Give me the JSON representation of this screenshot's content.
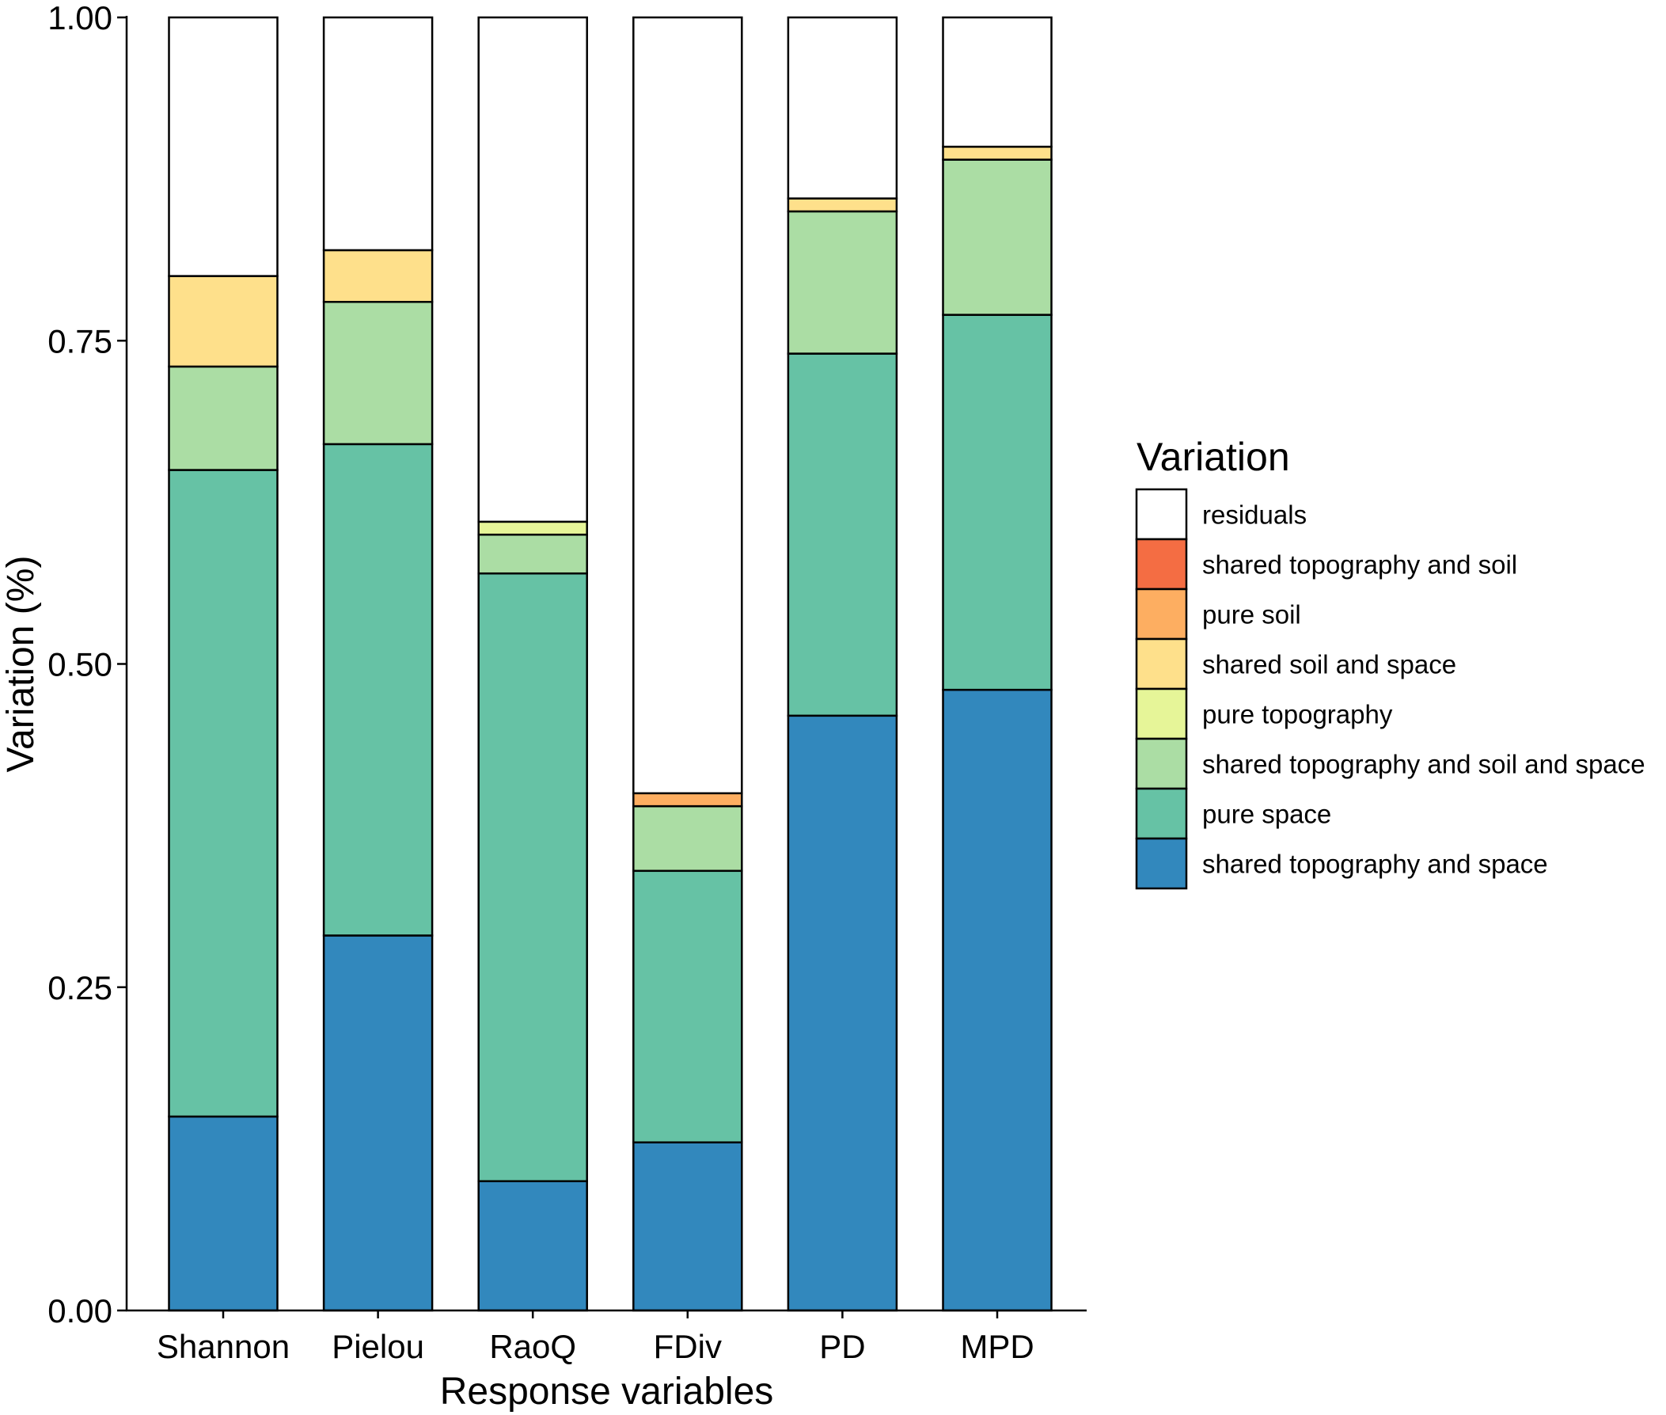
{
  "chart_data": {
    "type": "bar",
    "stacked": true,
    "title": "",
    "xlabel": "Response variables",
    "ylabel": "Variation (%)",
    "ylim": [
      0,
      1
    ],
    "yticks": [
      "0.00",
      "0.25",
      "0.50",
      "0.75",
      "1.00"
    ],
    "categories": [
      "Shannon",
      "Pielou",
      "RaoQ",
      "FDiv",
      "PD",
      "MPD"
    ],
    "legend_title": "Variation",
    "legend_position": "right",
    "series": [
      {
        "name": "shared topography and space",
        "color": "#3288bd",
        "values": [
          0.15,
          0.29,
          0.1,
          0.13,
          0.46,
          0.48
        ]
      },
      {
        "name": "pure space",
        "color": "#66c2a5",
        "values": [
          0.5,
          0.38,
          0.47,
          0.21,
          0.28,
          0.29
        ]
      },
      {
        "name": "shared topography and soil and space",
        "color": "#abdda4",
        "values": [
          0.08,
          0.11,
          0.03,
          0.05,
          0.11,
          0.12
        ]
      },
      {
        "name": "pure topography",
        "color": "#e6f598",
        "values": [
          0,
          0,
          0.01,
          0,
          0,
          0
        ]
      },
      {
        "name": "shared soil and space",
        "color": "#fee08b",
        "values": [
          0.07,
          0.04,
          0,
          0,
          0.01,
          0.01
        ]
      },
      {
        "name": "pure soil",
        "color": "#fdae61",
        "values": [
          0,
          0,
          0,
          0.01,
          0,
          0
        ]
      },
      {
        "name": "shared topography and soil",
        "color": "#f46d43",
        "values": [
          0,
          0,
          0,
          0,
          0,
          0
        ]
      },
      {
        "name": "residuals",
        "color": "#ffffff",
        "values": [
          0.2,
          0.18,
          0.39,
          0.6,
          0.14,
          0.1
        ]
      }
    ]
  }
}
